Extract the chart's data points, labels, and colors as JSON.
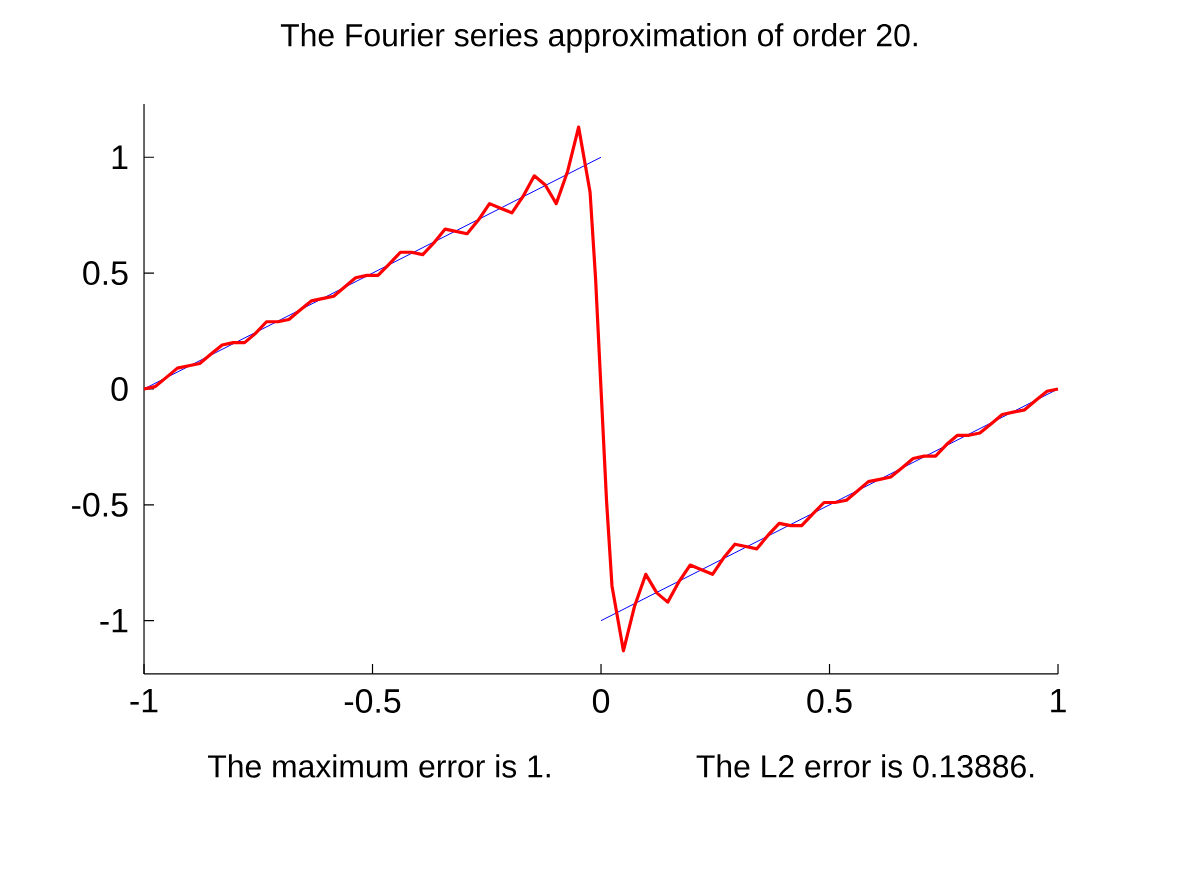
{
  "chart_data": {
    "type": "line",
    "title": "The Fourier series approximation of order 20.",
    "annotations": [
      "The maximum error is 1.",
      "The L2 error is 0.13886."
    ],
    "xlim": [
      -1,
      1
    ],
    "ylim": [
      -1.23,
      1.23
    ],
    "xticks": [
      -1,
      -0.5,
      0,
      0.5,
      1
    ],
    "yticks": [
      -1,
      -0.5,
      0,
      0.5,
      1
    ],
    "series": [
      {
        "color": "#0000ff",
        "x": [
          -1,
          0
        ],
        "values": [
          0,
          1
        ]
      },
      {
        "color": "#0000ff",
        "x": [
          0,
          1
        ],
        "values": [
          -1,
          0
        ]
      },
      {
        "color": "#ff0000",
        "x": [
          -1,
          -0.976,
          -0.951,
          -0.927,
          -0.902,
          -0.878,
          -0.854,
          -0.829,
          -0.805,
          -0.78,
          -0.756,
          -0.732,
          -0.707,
          -0.683,
          -0.659,
          -0.634,
          -0.61,
          -0.585,
          -0.561,
          -0.537,
          -0.512,
          -0.488,
          -0.463,
          -0.439,
          -0.415,
          -0.39,
          -0.366,
          -0.341,
          -0.317,
          -0.293,
          -0.268,
          -0.244,
          -0.22,
          -0.195,
          -0.171,
          -0.146,
          -0.122,
          -0.098,
          -0.073,
          -0.049,
          -0.024,
          -0.012,
          0,
          0.012,
          0.024,
          0.049,
          0.073,
          0.098,
          0.122,
          0.146,
          0.171,
          0.195,
          0.22,
          0.244,
          0.268,
          0.293,
          0.317,
          0.341,
          0.366,
          0.39,
          0.415,
          0.439,
          0.463,
          0.488,
          0.512,
          0.537,
          0.561,
          0.585,
          0.61,
          0.634,
          0.659,
          0.683,
          0.707,
          0.732,
          0.756,
          0.78,
          0.805,
          0.829,
          0.854,
          0.878,
          0.902,
          0.927,
          0.951,
          0.976,
          1
        ],
        "values": [
          0,
          0.01,
          0.05,
          0.09,
          0.1,
          0.11,
          0.15,
          0.19,
          0.2,
          0.2,
          0.24,
          0.29,
          0.29,
          0.3,
          0.34,
          0.38,
          0.39,
          0.4,
          0.44,
          0.48,
          0.49,
          0.49,
          0.54,
          0.59,
          0.59,
          0.58,
          0.63,
          0.69,
          0.68,
          0.67,
          0.73,
          0.8,
          0.78,
          0.76,
          0.83,
          0.92,
          0.88,
          0.8,
          0.94,
          1.13,
          0.85,
          0.48,
          0,
          -0.48,
          -0.85,
          -1.13,
          -0.94,
          -0.8,
          -0.88,
          -0.92,
          -0.83,
          -0.76,
          -0.78,
          -0.8,
          -0.73,
          -0.67,
          -0.68,
          -0.69,
          -0.63,
          -0.58,
          -0.59,
          -0.59,
          -0.54,
          -0.49,
          -0.49,
          -0.48,
          -0.44,
          -0.4,
          -0.39,
          -0.38,
          -0.34,
          -0.3,
          -0.29,
          -0.29,
          -0.24,
          -0.2,
          -0.2,
          -0.19,
          -0.15,
          -0.11,
          -0.1,
          -0.09,
          -0.05,
          -0.01,
          0
        ]
      }
    ]
  }
}
